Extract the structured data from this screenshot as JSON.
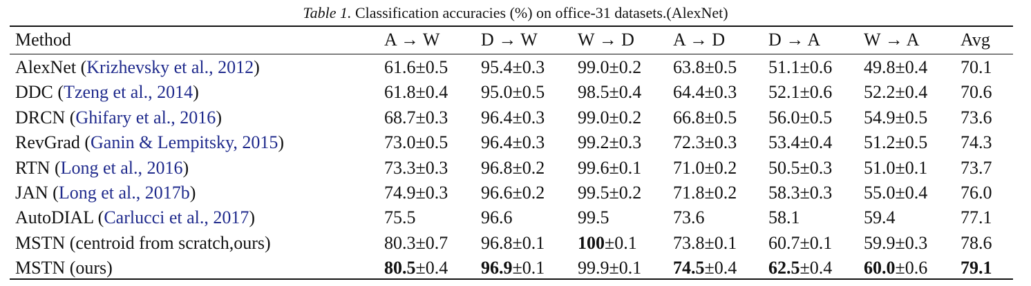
{
  "caption": {
    "label": "Table 1.",
    "text": "Classification accuracies (%) on office-31 datasets.(AlexNet)"
  },
  "headers": [
    "Method",
    "A → W",
    "D → W",
    "W → D",
    "A → D",
    "D → A",
    "W → A",
    "Avg"
  ],
  "rows": [
    {
      "method": "AlexNet",
      "cite": "Krizhevsky et al., 2012",
      "cells": [
        {
          "val": "61.6",
          "pm": "±0.5"
        },
        {
          "val": "95.4",
          "pm": "±0.3"
        },
        {
          "val": "99.0",
          "pm": "±0.2"
        },
        {
          "val": "63.8",
          "pm": "±0.5"
        },
        {
          "val": "51.1",
          "pm": "±0.6"
        },
        {
          "val": "49.8",
          "pm": "±0.4"
        },
        {
          "val": "70.1",
          "pm": ""
        }
      ]
    },
    {
      "method": "DDC",
      "cite": "Tzeng et al., 2014",
      "cells": [
        {
          "val": "61.8",
          "pm": "±0.4"
        },
        {
          "val": "95.0",
          "pm": "±0.5"
        },
        {
          "val": "98.5",
          "pm": "±0.4"
        },
        {
          "val": "64.4",
          "pm": "±0.3"
        },
        {
          "val": "52.1",
          "pm": "±0.6"
        },
        {
          "val": "52.2",
          "pm": "±0.4"
        },
        {
          "val": "70.6",
          "pm": ""
        }
      ]
    },
    {
      "method": "DRCN",
      "cite": "Ghifary et al., 2016",
      "cells": [
        {
          "val": "68.7",
          "pm": "±0.3"
        },
        {
          "val": "96.4",
          "pm": "±0.3"
        },
        {
          "val": "99.0",
          "pm": "±0.2"
        },
        {
          "val": "66.8",
          "pm": "±0.5"
        },
        {
          "val": "56.0",
          "pm": "±0.5"
        },
        {
          "val": "54.9",
          "pm": "±0.5"
        },
        {
          "val": "73.6",
          "pm": ""
        }
      ]
    },
    {
      "method": "RevGrad",
      "cite": "Ganin & Lempitsky, 2015",
      "cells": [
        {
          "val": "73.0",
          "pm": "±0.5"
        },
        {
          "val": "96.4",
          "pm": "±0.3"
        },
        {
          "val": "99.2",
          "pm": "±0.3"
        },
        {
          "val": "72.3",
          "pm": "±0.3"
        },
        {
          "val": "53.4",
          "pm": "±0.4"
        },
        {
          "val": "51.2",
          "pm": "±0.5"
        },
        {
          "val": "74.3",
          "pm": ""
        }
      ]
    },
    {
      "method": "RTN",
      "cite": "Long et al., 2016",
      "cells": [
        {
          "val": "73.3",
          "pm": "±0.3"
        },
        {
          "val": "96.8",
          "pm": "±0.2"
        },
        {
          "val": "99.6",
          "pm": "±0.1"
        },
        {
          "val": "71.0",
          "pm": "±0.2"
        },
        {
          "val": "50.5",
          "pm": "±0.3"
        },
        {
          "val": "51.0",
          "pm": "±0.1"
        },
        {
          "val": "73.7",
          "pm": ""
        }
      ]
    },
    {
      "method": "JAN",
      "cite": "Long et al., 2017b",
      "cells": [
        {
          "val": "74.9",
          "pm": "±0.3"
        },
        {
          "val": "96.6",
          "pm": "±0.2"
        },
        {
          "val": "99.5",
          "pm": "±0.2"
        },
        {
          "val": "71.8",
          "pm": "±0.2"
        },
        {
          "val": "58.3",
          "pm": "±0.3"
        },
        {
          "val": "55.0",
          "pm": "±0.4"
        },
        {
          "val": "76.0",
          "pm": ""
        }
      ]
    },
    {
      "method": "AutoDIAL",
      "cite": "Carlucci et al., 2017",
      "cells": [
        {
          "val": "75.5",
          "pm": ""
        },
        {
          "val": "96.6",
          "pm": ""
        },
        {
          "val": "99.5",
          "pm": ""
        },
        {
          "val": "73.6",
          "pm": ""
        },
        {
          "val": "58.1",
          "pm": ""
        },
        {
          "val": "59.4",
          "pm": ""
        },
        {
          "val": "77.1",
          "pm": ""
        }
      ]
    },
    {
      "method": "MSTN (centroid from scratch,ours)",
      "cite": "",
      "cells": [
        {
          "val": "80.3",
          "pm": "±0.7"
        },
        {
          "val": "96.8",
          "pm": "±0.1"
        },
        {
          "val": "100",
          "pm": "±0.1",
          "bold": true
        },
        {
          "val": "73.8",
          "pm": "±0.1"
        },
        {
          "val": "60.7",
          "pm": "±0.1"
        },
        {
          "val": "59.9",
          "pm": "±0.3"
        },
        {
          "val": "78.6",
          "pm": ""
        }
      ]
    },
    {
      "method": "MSTN (ours)",
      "cite": "",
      "cells": [
        {
          "val": "80.5",
          "pm": "±0.4",
          "bold": true
        },
        {
          "val": "96.9",
          "pm": "±0.1",
          "bold": true
        },
        {
          "val": "99.9",
          "pm": "±0.1"
        },
        {
          "val": "74.5",
          "pm": "±0.4",
          "bold": true
        },
        {
          "val": "62.5",
          "pm": "±0.4",
          "bold": true
        },
        {
          "val": "60.0",
          "pm": "±0.6",
          "bold": true
        },
        {
          "val": "79.1",
          "pm": "",
          "bold": true
        }
      ]
    }
  ]
}
